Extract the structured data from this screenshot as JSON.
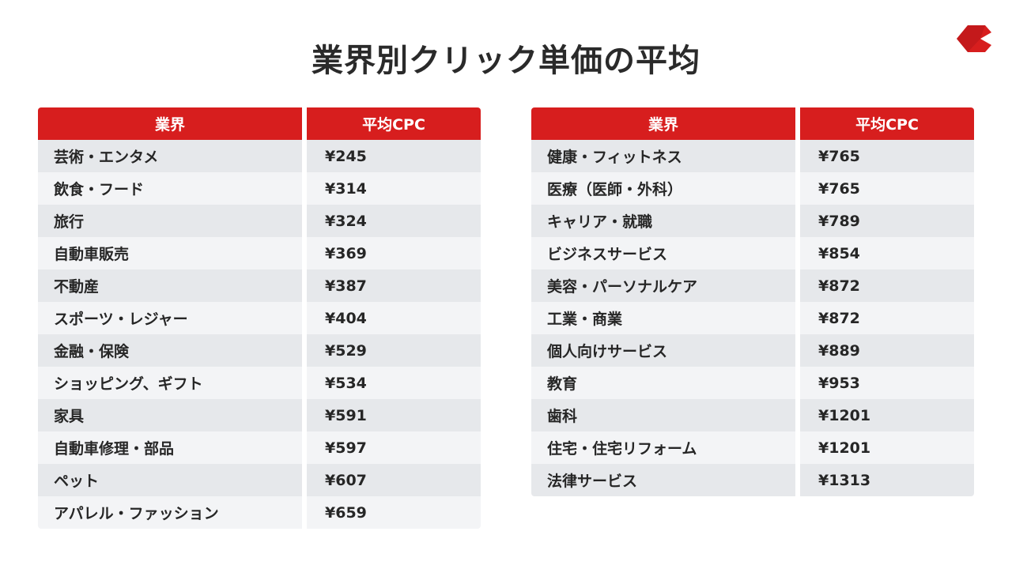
{
  "title": "業界別クリック単価の平均",
  "brand": {
    "accent": "#d71e1e",
    "logo": "red-chevron-logo"
  },
  "tables": [
    {
      "headers": [
        "業界",
        "平均CPC"
      ],
      "rows": [
        [
          "芸術・エンタメ",
          "¥245"
        ],
        [
          "飲食・フード",
          "¥314"
        ],
        [
          "旅行",
          "¥324"
        ],
        [
          "自動車販売",
          "¥369"
        ],
        [
          "不動産",
          "¥387"
        ],
        [
          "スポーツ・レジャー",
          "¥404"
        ],
        [
          "金融・保険",
          "¥529"
        ],
        [
          "ショッピング、ギフト",
          "¥534"
        ],
        [
          "家具",
          "¥591"
        ],
        [
          "自動車修理・部品",
          "¥597"
        ],
        [
          "ペット",
          "¥607"
        ],
        [
          "アパレル・ファッション",
          "¥659"
        ]
      ]
    },
    {
      "headers": [
        "業界",
        "平均CPC"
      ],
      "rows": [
        [
          "健康・フィットネス",
          "¥765"
        ],
        [
          "医療（医師・外科）",
          "¥765"
        ],
        [
          "キャリア・就職",
          "¥789"
        ],
        [
          "ビジネスサービス",
          "¥854"
        ],
        [
          "美容・パーソナルケア",
          "¥872"
        ],
        [
          "工業・商業",
          "¥872"
        ],
        [
          "個人向けサービス",
          "¥889"
        ],
        [
          "教育",
          "¥953"
        ],
        [
          "歯科",
          "¥1201"
        ],
        [
          "住宅・住宅リフォーム",
          "¥1201"
        ],
        [
          "法律サービス",
          "¥1313"
        ]
      ]
    }
  ]
}
